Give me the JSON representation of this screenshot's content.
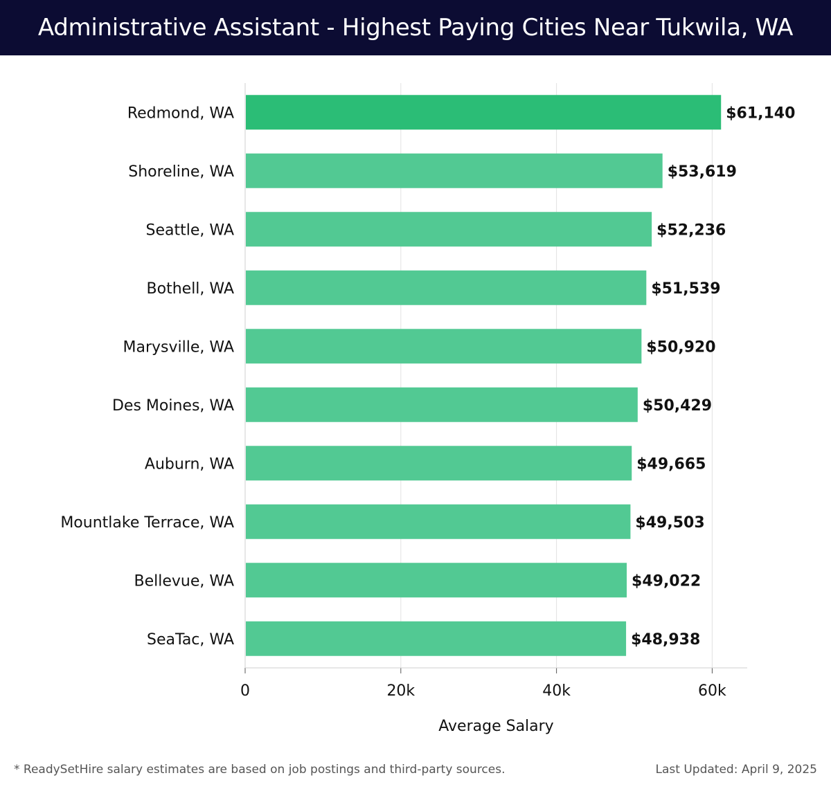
{
  "header": {
    "title": "Administrative Assistant - Highest Paying Cities Near Tukwila, WA"
  },
  "chart_data": {
    "type": "bar",
    "orientation": "horizontal",
    "categories": [
      "Redmond, WA",
      "Shoreline, WA",
      "Seattle, WA",
      "Bothell, WA",
      "Marysville, WA",
      "Des Moines, WA",
      "Auburn, WA",
      "Mountlake Terrace, WA",
      "Bellevue, WA",
      "SeaTac, WA"
    ],
    "values": [
      61140,
      53619,
      52236,
      51539,
      50920,
      50429,
      49665,
      49503,
      49022,
      48938
    ],
    "value_labels": [
      "$61,140",
      "$53,619",
      "$52,236",
      "$51,539",
      "$50,920",
      "$50,429",
      "$49,665",
      "$49,503",
      "$49,022",
      "$48,938"
    ],
    "xlabel": "Average Salary",
    "ylabel": "",
    "xlim": [
      0,
      64500
    ],
    "xticks": [
      0,
      20000,
      40000,
      60000
    ],
    "xtick_labels": [
      "0",
      "20k",
      "40k",
      "60k"
    ],
    "grid": "vertical",
    "colors": {
      "highlight": "#2bbd76",
      "bar": "#52c993",
      "grid": "#e2e2e2",
      "axis": "#cfcfcf"
    }
  },
  "footer": {
    "note": "* ReadySetHire salary estimates are based on job postings and third-party sources.",
    "updated": "Last Updated: April 9, 2025"
  }
}
